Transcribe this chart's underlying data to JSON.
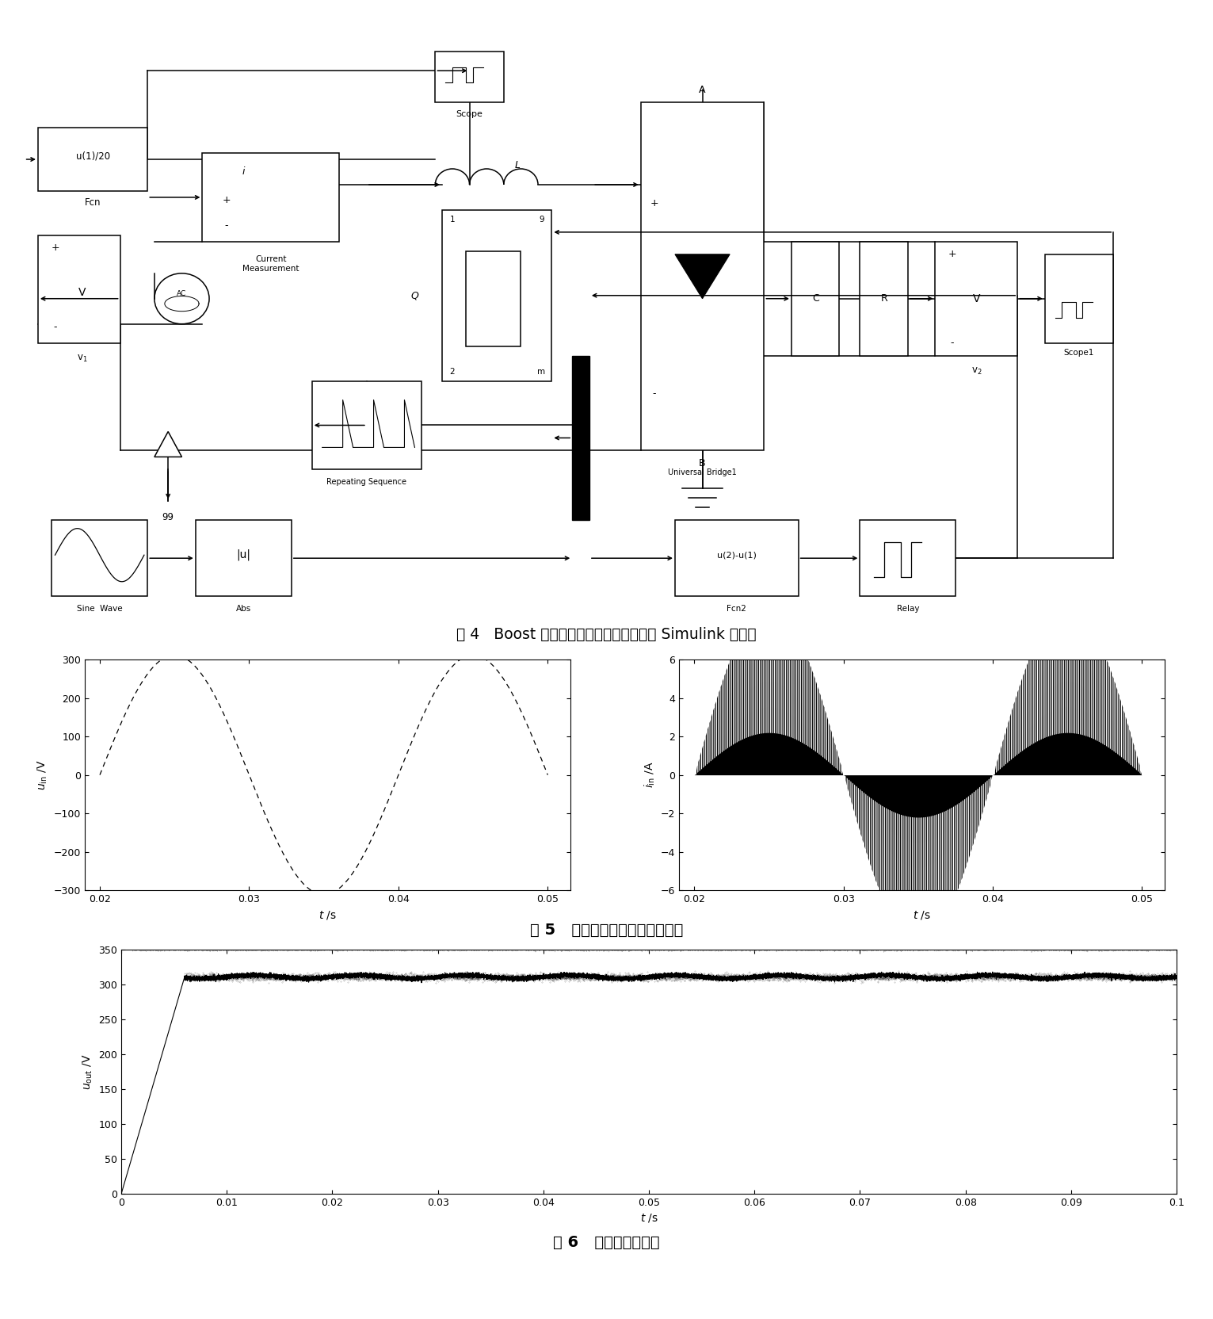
{
  "fig_width": 15.31,
  "fig_height": 16.64,
  "bg_color": "#ffffff",
  "caption4": "图 4   Boost 型交流斩波功率因数校正电路 Simulink 模型图",
  "caption5": "图 5   输入电压和输入电流的波形",
  "caption6": "图 6   输出电压的波形",
  "plot1_ylabel": "$u_{\\mathrm{in}}$ /V",
  "plot1_xlabel": "$t$ /s",
  "plot1_xlim": [
    0.019,
    0.0515
  ],
  "plot1_ylim": [
    -300,
    300
  ],
  "plot1_yticks": [
    -300,
    -200,
    -100,
    0,
    100,
    200,
    300
  ],
  "plot1_xticks": [
    0.02,
    0.03,
    0.04,
    0.05
  ],
  "plot1_xticklabels": [
    "0.02",
    "0.03",
    "0.04",
    "0.05"
  ],
  "plot2_ylabel": "$i_{\\mathrm{in}}$ /A",
  "plot2_xlabel": "$t$ /s",
  "plot2_xlim": [
    0.019,
    0.0515
  ],
  "plot2_ylim": [
    -6,
    6
  ],
  "plot2_yticks": [
    -6,
    -4,
    -2,
    0,
    2,
    4,
    6
  ],
  "plot2_xticks": [
    0.02,
    0.03,
    0.04,
    0.05
  ],
  "plot2_xticklabels": [
    "0.02",
    "0.03",
    "0.04",
    "0.05"
  ],
  "plot3_ylabel": "$u_{\\mathrm{out}}$ /V",
  "plot3_xlabel": "$t$ /s",
  "plot3_xlim": [
    0,
    0.1
  ],
  "plot3_ylim": [
    0,
    350
  ],
  "plot3_yticks": [
    0,
    50,
    100,
    150,
    200,
    250,
    300,
    350
  ],
  "plot3_xticks": [
    0,
    0.01,
    0.02,
    0.03,
    0.04,
    0.05,
    0.06,
    0.07,
    0.08,
    0.09,
    0.1
  ],
  "plot3_xticklabels": [
    "0",
    "0.01",
    "0.02",
    "0.03",
    "0.04",
    "0.05",
    "0.06",
    "0.07",
    "0.08",
    "0.09",
    "0.1"
  ]
}
